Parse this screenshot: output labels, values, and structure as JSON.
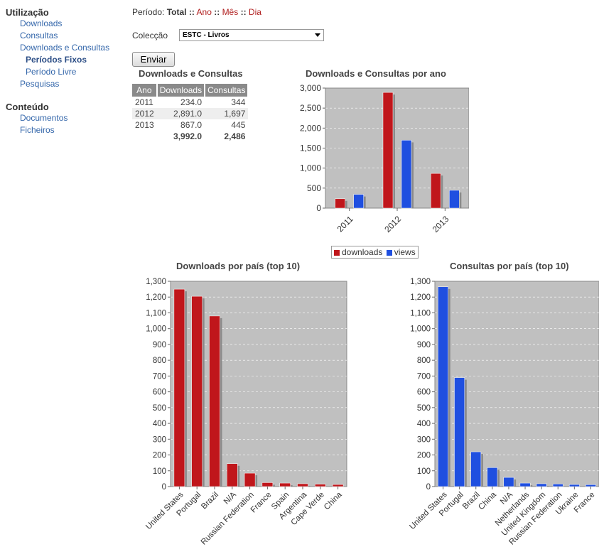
{
  "sidebar": {
    "utilizacao": "Utilização",
    "items": [
      {
        "label": "Downloads",
        "level": 1,
        "active": false
      },
      {
        "label": "Consultas",
        "level": 1,
        "active": false
      },
      {
        "label": "Downloads e Consultas",
        "level": 1,
        "active": false
      },
      {
        "label": "Períodos Fixos",
        "level": 2,
        "active": true
      },
      {
        "label": "Período Livre",
        "level": 2,
        "active": false
      },
      {
        "label": "Pesquisas",
        "level": 1,
        "active": false
      }
    ],
    "conteudo": "Conteúdo",
    "items2": [
      {
        "label": "Documentos"
      },
      {
        "label": "Ficheiros"
      }
    ]
  },
  "periodo": {
    "label": "Período:",
    "current": "Total",
    "sep": "::",
    "links": [
      "Ano",
      "Mês",
      "Dia"
    ]
  },
  "coleccao": {
    "label": "Colecção",
    "selected": "ESTC - Livros"
  },
  "submit_label": "Enviar",
  "table": {
    "title": "Downloads e Consultas",
    "headers": [
      "Ano",
      "Downloads",
      "Consultas"
    ],
    "rows": [
      [
        "2011",
        "234.0",
        "344"
      ],
      [
        "2012",
        "2,891.0",
        "1,697"
      ],
      [
        "2013",
        "867.0",
        "445"
      ]
    ],
    "total": [
      "",
      "3,992.0",
      "2,486"
    ]
  },
  "colors": {
    "downloads": "#c0161b",
    "views": "#1f4fe0",
    "plot_bg": "#c0c0c0"
  },
  "chart_data": [
    {
      "type": "bar",
      "title": "Downloads e Consultas por ano",
      "categories": [
        "2011",
        "2012",
        "2013"
      ],
      "series": [
        {
          "name": "downloads",
          "values": [
            234,
            2891,
            867
          ]
        },
        {
          "name": "views",
          "values": [
            344,
            1697,
            445
          ]
        }
      ],
      "ylim": [
        0,
        3000
      ],
      "yticks": [
        0,
        500,
        1000,
        1500,
        2000,
        2500,
        3000
      ],
      "ytick_labels": [
        "0",
        "500",
        "1,000",
        "1,500",
        "2,000",
        "2,500",
        "3,000"
      ],
      "legend": "bottom"
    },
    {
      "type": "bar",
      "title": "Downloads por país (top 10)",
      "categories": [
        "United States",
        "Portugal",
        "Brazil",
        "N/A",
        "Russian Federation",
        "France",
        "Spain",
        "Argentina",
        "Cape Verde",
        "China"
      ],
      "values": [
        1250,
        1205,
        1080,
        145,
        85,
        25,
        22,
        18,
        15,
        13
      ],
      "ylim": [
        0,
        1300
      ],
      "yticks": [
        0,
        100,
        200,
        300,
        400,
        500,
        600,
        700,
        800,
        900,
        1000,
        1100,
        1200,
        1300
      ],
      "ytick_labels": [
        "0",
        "100",
        "200",
        "300",
        "400",
        "500",
        "600",
        "700",
        "800",
        "900",
        "1,000",
        "1,100",
        "1,200",
        "1,300"
      ]
    },
    {
      "type": "bar",
      "title": "Consultas por país (top 10)",
      "categories": [
        "United States",
        "Portugal",
        "Brazil",
        "China",
        "N/A",
        "Netherlands",
        "United Kingdom",
        "Russian Federation",
        "Ukraine",
        "France"
      ],
      "values": [
        1265,
        690,
        220,
        120,
        58,
        22,
        18,
        16,
        13,
        12
      ],
      "ylim": [
        0,
        1300
      ],
      "yticks": [
        0,
        100,
        200,
        300,
        400,
        500,
        600,
        700,
        800,
        900,
        1000,
        1100,
        1200,
        1300
      ],
      "ytick_labels": [
        "0",
        "100",
        "200",
        "300",
        "400",
        "500",
        "600",
        "700",
        "800",
        "900",
        "1,000",
        "1,100",
        "1,200",
        "1,300"
      ]
    }
  ]
}
